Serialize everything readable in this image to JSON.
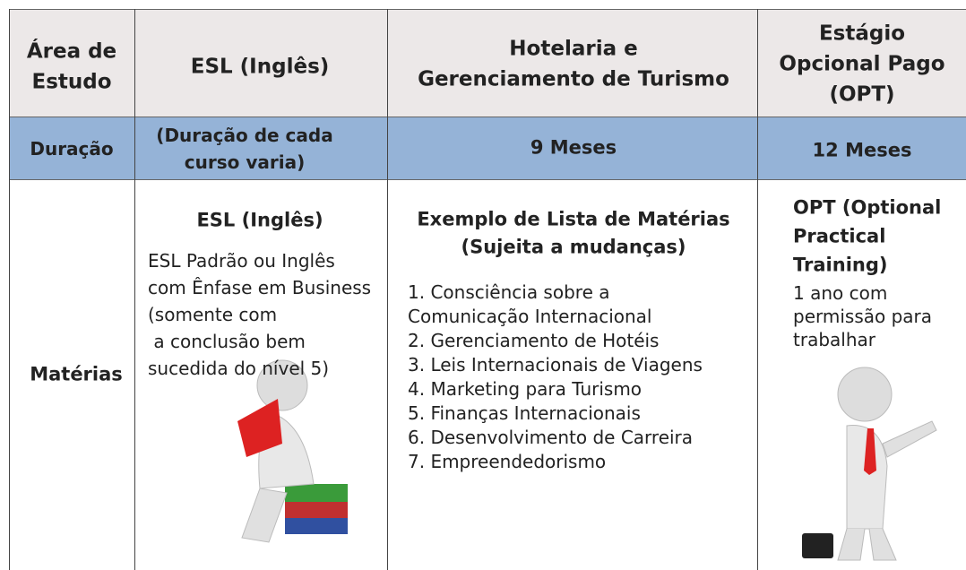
{
  "header": {
    "cells": [
      [
        "Área de",
        "Estudo"
      ],
      [
        "ESL (Inglês)"
      ],
      [
        "Hotelaria e",
        "Gerenciamento de Turismo"
      ],
      [
        "Estágio",
        "Opcional Pago",
        "(OPT)"
      ]
    ]
  },
  "duration": {
    "label": "Duração",
    "cells": [
      [
        "(Duração de cada",
        "curso varia)"
      ],
      [
        "9 Meses"
      ],
      [
        "12 Meses"
      ]
    ]
  },
  "subjects": {
    "label": "Matérias",
    "esl": {
      "heading": "ESL (Inglês)",
      "lines": [
        "ESL Padrão ou Inglês",
        "com Ênfase em Business",
        "(somente com",
        " a conclusão bem",
        "sucedida do nível 5)"
      ]
    },
    "hotel": {
      "heading": [
        "Exemplo de Lista de Matérias",
        "(Sujeita a mudanças)"
      ],
      "lines": [
        "1. Consciência sobre a",
        "Comunicação Internacional",
        "2. Gerenciamento de Hotéis",
        "3. Leis Internacionais de Viagens",
        "4. Marketing para Turismo",
        "5. Finanças Internacionais",
        "6. Desenvolvimento de Carreira",
        "7. Empreendedorismo"
      ]
    },
    "opt": {
      "heading": [
        "OPT (Optional",
        "Practical",
        "Training)"
      ],
      "lines": [
        "1 ano com",
        "permissão para",
        "trabalhar"
      ]
    }
  }
}
